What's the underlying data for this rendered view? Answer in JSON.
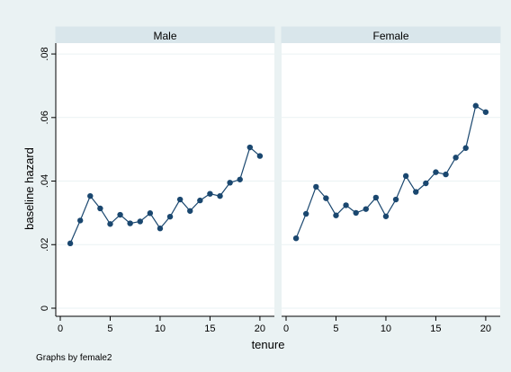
{
  "chart_data": {
    "type": "line",
    "by_note": "Graphs by female2",
    "xlabel": "tenure",
    "ylabel": "baseline hazard",
    "xlim": [
      0,
      21
    ],
    "ylim": [
      0,
      0.082
    ],
    "x_ticks": [
      0,
      5,
      10,
      15,
      20
    ],
    "y_ticks": [
      0,
      0.02,
      0.04,
      0.06,
      0.08
    ],
    "y_tick_labels": [
      "0",
      ".02",
      ".04",
      ".06",
      ".08"
    ],
    "grid": true,
    "marker_color": "#1a476f",
    "panels": [
      {
        "name": "Male",
        "x": [
          1,
          2,
          3,
          4,
          5,
          6,
          7,
          8,
          9,
          10,
          11,
          12,
          13,
          14,
          15,
          16,
          17,
          18,
          19,
          20
        ],
        "values": [
          0.0204,
          0.0276,
          0.0353,
          0.0314,
          0.0265,
          0.0294,
          0.0267,
          0.0273,
          0.0299,
          0.0251,
          0.0288,
          0.0342,
          0.0306,
          0.0339,
          0.036,
          0.0353,
          0.0395,
          0.0405,
          0.0506,
          0.0479
        ]
      },
      {
        "name": "Female",
        "x": [
          1,
          2,
          3,
          4,
          5,
          6,
          7,
          8,
          9,
          10,
          11,
          12,
          13,
          14,
          15,
          16,
          17,
          18,
          19,
          20
        ],
        "values": [
          0.022,
          0.0297,
          0.0382,
          0.0346,
          0.0292,
          0.0324,
          0.03,
          0.0312,
          0.0348,
          0.0289,
          0.0342,
          0.0416,
          0.0366,
          0.0393,
          0.0428,
          0.0421,
          0.0474,
          0.0504,
          0.0637,
          0.0617
        ]
      }
    ]
  }
}
